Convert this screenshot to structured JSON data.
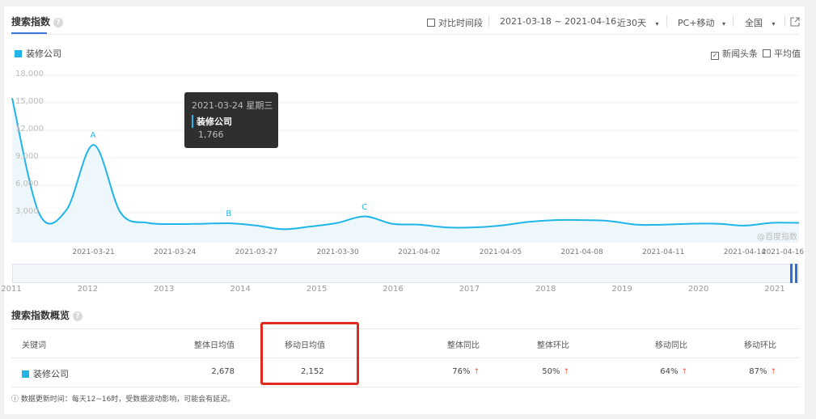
{
  "header": {
    "title": "搜索指数",
    "help": "?",
    "compare_label": "对比时间段",
    "date_range": "2021-03-18 ~ 2021-04-16",
    "period": "近30天",
    "device": "PC+移动",
    "region": "全国",
    "dropdown_arrow": "▾",
    "export_icon": "external-link-icon"
  },
  "legend": {
    "series": "装修公司",
    "news_label": "新闻头条",
    "news_checked": true,
    "avg_label": "平均值",
    "avg_checked": false
  },
  "colors": {
    "series": "#1fb5e8",
    "accent": "#3a77d8",
    "highlight_box": "#e02a1f",
    "up": "#f05a4a"
  },
  "chart_data": {
    "type": "area",
    "x": [
      "2021-03-18",
      "2021-03-19",
      "2021-03-20",
      "2021-03-21",
      "2021-03-22",
      "2021-03-23",
      "2021-03-24",
      "2021-03-25",
      "2021-03-26",
      "2021-03-27",
      "2021-03-28",
      "2021-03-29",
      "2021-03-30",
      "2021-03-31",
      "2021-04-01",
      "2021-04-02",
      "2021-04-03",
      "2021-04-04",
      "2021-04-05",
      "2021-04-06",
      "2021-04-07",
      "2021-04-08",
      "2021-04-09",
      "2021-04-10",
      "2021-04-11",
      "2021-04-12",
      "2021-04-13",
      "2021-04-14",
      "2021-04-15",
      "2021-04-16"
    ],
    "series": [
      {
        "name": "装修公司",
        "values": [
          15500,
          2900,
          3300,
          10400,
          3000,
          1900,
          1766,
          1800,
          1850,
          1600,
          1200,
          1500,
          1900,
          2600,
          1800,
          1700,
          1400,
          1400,
          1600,
          2000,
          2200,
          2200,
          2100,
          1700,
          1700,
          1800,
          1800,
          1600,
          1900,
          1900
        ]
      }
    ],
    "ylim": [
      0,
      18000
    ],
    "yticks": [
      "3,000",
      "6,000",
      "9,000",
      "12,000",
      "15,000",
      "18,000"
    ],
    "ytick_values": [
      3000,
      6000,
      9000,
      12000,
      15000,
      18000
    ],
    "xticks": [
      "2021-03-21",
      "2021-03-24",
      "2021-03-27",
      "2021-03-30",
      "2021-04-02",
      "2021-04-05",
      "2021-04-08",
      "2021-04-11",
      "2021-04-14",
      "2021-04-16"
    ],
    "annotations": [
      {
        "label": "A",
        "x": "2021-03-21"
      },
      {
        "label": "B",
        "x": "2021-03-26"
      },
      {
        "label": "C",
        "x": "2021-03-31"
      }
    ],
    "grid": true,
    "tooltip": {
      "date": "2021-03-24 星期三",
      "series": "装修公司",
      "value": "1,766"
    },
    "watermark": "@百度指数"
  },
  "navigator": {
    "years": [
      "2011",
      "2012",
      "2013",
      "2014",
      "2015",
      "2016",
      "2017",
      "2018",
      "2019",
      "2020",
      "2021"
    ]
  },
  "overview": {
    "title": "搜索指数概览",
    "help": "?",
    "columns": [
      "关键词",
      "整体日均值",
      "移动日均值",
      "整体同比",
      "整体环比",
      "移动同比",
      "移动环比"
    ],
    "row": {
      "keyword": "装修公司",
      "overall_avg": "2,678",
      "mobile_avg": "2,152",
      "overall_yoy": "76%",
      "overall_mom": "50%",
      "mobile_yoy": "64%",
      "mobile_mom": "87%",
      "arrow": "↑"
    },
    "note": "ⓘ 数据更新时间：每天12~16时，受数据波动影响，可能会有延迟。"
  }
}
